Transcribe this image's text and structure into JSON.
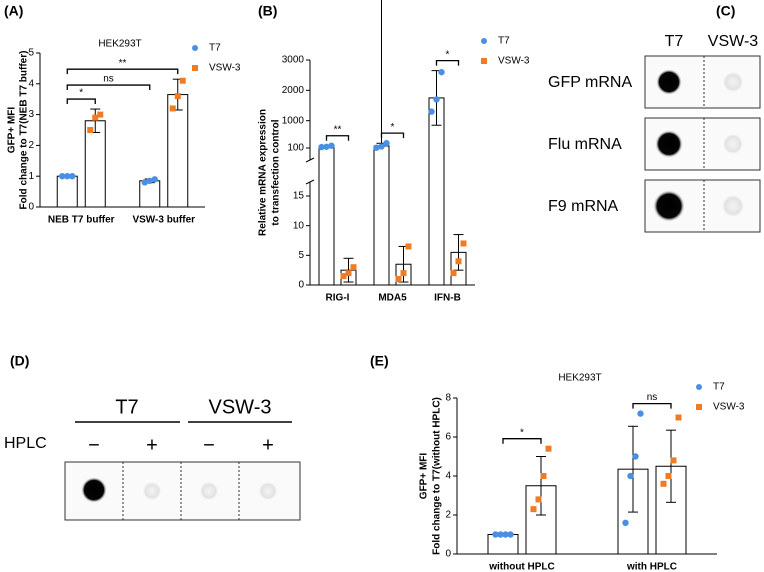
{
  "chart_data": [
    {
      "type": "bar",
      "panel": "(A)",
      "title": "HEK293T",
      "ylabel": [
        "GFP+ MFI",
        "Fold change to T7(NEB T7 buffer)"
      ],
      "categories": [
        "NEB T7 buffer",
        "VSW-3 buffer"
      ],
      "ylim": [
        0,
        5
      ],
      "yticks": [
        0,
        1,
        2,
        3,
        4,
        5
      ],
      "series": [
        {
          "name": "T7",
          "color": "#4a90e2",
          "marker": "circle",
          "values": [
            1.0,
            0.85
          ],
          "errors": [
            0.02,
            0.06
          ],
          "points": [
            [
              1.0,
              1.0,
              1.0
            ],
            [
              0.8,
              0.85,
              0.9
            ]
          ]
        },
        {
          "name": "VSW-3",
          "color": "#f07b22",
          "marker": "square",
          "values": [
            2.8,
            3.65
          ],
          "errors": [
            0.38,
            0.5
          ],
          "points": [
            [
              2.5,
              2.9,
              3.0
            ],
            [
              3.2,
              3.6,
              4.1
            ]
          ]
        }
      ],
      "annotations": [
        {
          "text": "*",
          "groups": [
            [
              0,
              0
            ],
            [
              0,
              1
            ]
          ]
        },
        {
          "text": "ns",
          "groups": [
            [
              0,
              0
            ],
            [
              1,
              0
            ]
          ]
        },
        {
          "text": "**",
          "groups": [
            [
              0,
              0
            ],
            [
              1,
              1
            ]
          ]
        }
      ]
    },
    {
      "type": "bar",
      "panel": "(B)",
      "ylabel": [
        "Relative mRNA expression",
        "to transfection control"
      ],
      "categories": [
        "RIG-I",
        "MDA5",
        "IFN-B"
      ],
      "ylim": [
        0,
        3000
      ],
      "y_break": [
        15,
        100
      ],
      "yticks": [
        0,
        5,
        10,
        15,
        100,
        1000,
        2000,
        3000
      ],
      "series": [
        {
          "name": "T7",
          "color": "#4a90e2",
          "marker": "circle",
          "values": [
            145,
            165,
            1750
          ],
          "errors": [
            30,
            90,
            900
          ],
          "points": [
            [
              130,
              140,
              175
            ],
            [
              110,
              150,
              260
            ],
            [
              1300,
              1700,
              2600
            ]
          ]
        },
        {
          "name": "VSW-3",
          "color": "#f07b22",
          "marker": "square",
          "values": [
            2.5,
            3.5,
            5.5
          ],
          "errors": [
            2,
            3,
            3
          ],
          "points": [
            [
              1.5,
              2,
              3
            ],
            [
              1,
              2,
              6.5
            ],
            [
              2,
              4,
              7
            ]
          ]
        }
      ],
      "annotations": [
        {
          "text": "**",
          "groups": [
            [
              0,
              0
            ],
            [
              0,
              1
            ]
          ]
        },
        {
          "text": "*",
          "groups": [
            [
              1,
              0
            ],
            [
              1,
              1
            ]
          ]
        },
        {
          "text": "*",
          "groups": [
            [
              2,
              0
            ],
            [
              2,
              1
            ]
          ]
        }
      ]
    },
    {
      "type": "bar",
      "panel": "(E)",
      "title": "HEK293T",
      "ylabel": [
        "GFP+ MFI",
        "Fold change to T7(without HPLC)"
      ],
      "categories": [
        "without HPLC",
        "with HPLC"
      ],
      "ylim": [
        0,
        8
      ],
      "yticks": [
        0,
        2,
        4,
        6,
        8
      ],
      "series": [
        {
          "name": "T7",
          "color": "#4a90e2",
          "marker": "circle",
          "values": [
            1.0,
            4.35
          ],
          "errors": [
            0.03,
            2.2
          ],
          "points": [
            [
              1.0,
              1.0,
              1.0,
              1.0
            ],
            [
              1.6,
              4.0,
              5.0,
              7.2
            ]
          ]
        },
        {
          "name": "VSW-3",
          "color": "#f07b22",
          "marker": "square",
          "values": [
            3.5,
            4.5
          ],
          "errors": [
            1.5,
            1.85
          ],
          "points": [
            [
              2.3,
              2.8,
              4.0,
              5.4
            ],
            [
              3.6,
              4.0,
              4.8,
              7.0
            ]
          ]
        }
      ],
      "annotations": [
        {
          "text": "*",
          "groups": [
            [
              0,
              0
            ],
            [
              0,
              1
            ]
          ]
        },
        {
          "text": "ns",
          "groups": [
            [
              1,
              0
            ],
            [
              1,
              1
            ]
          ]
        }
      ]
    }
  ],
  "blots": [
    {
      "panel": "(C)",
      "columns": [
        "T7",
        "VSW-3"
      ],
      "rows": [
        "GFP mRNA",
        "Flu mRNA",
        "F9 mRNA"
      ]
    },
    {
      "panel": "(D)",
      "columns": [
        "T7",
        "VSW-3"
      ],
      "row_label": "HPLC",
      "lanes": [
        "−",
        "+",
        "−",
        "+"
      ]
    }
  ]
}
